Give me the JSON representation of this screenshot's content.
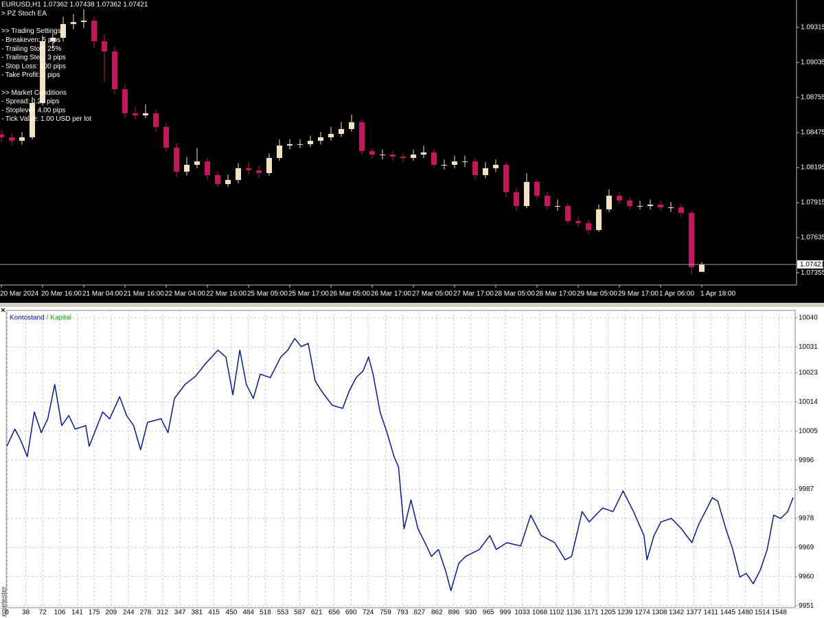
{
  "chart_data": [
    {
      "type": "candlestick",
      "title": "EURUSD,H1  1.07362 1.07438 1.07362 1.07421",
      "annotations": [
        [
          "> PZ Stoch EA"
        ],
        [
          ">> Trading Settings",
          "- Breakeven: 5 pips",
          "- Trailing Stop: 25%",
          "- Trailing Step: 3 pips",
          "- Stop Loss: 100 pips",
          "- Take Profit: 0 pips"
        ],
        [
          ">> Market Conditions",
          "- Spread: 0.20 pips",
          "- Stoplevel: 4.00 pips",
          "- Tick Value: 1.00 USD per lot"
        ]
      ],
      "categories": [
        "20 Mar 2024",
        null,
        null,
        null,
        "20 Mar 16:00",
        null,
        null,
        null,
        "21 Mar 04:00",
        null,
        null,
        null,
        "21 Mar 16:00",
        null,
        null,
        null,
        "22 Mar 04:00",
        null,
        null,
        null,
        "22 Mar 16:00",
        null,
        null,
        null,
        "25 Mar 05:00",
        null,
        null,
        null,
        "25 Mar 17:00",
        null,
        null,
        null,
        "26 Mar 05:00",
        null,
        null,
        null,
        "26 Mar 17:00",
        null,
        null,
        null,
        "27 Mar 05:00",
        null,
        null,
        null,
        "27 Mar 17:00",
        null,
        null,
        null,
        "28 Mar 05:00",
        null,
        null,
        null,
        "28 Mar 17:00",
        null,
        null,
        null,
        "29 Mar 05:00",
        null,
        null,
        null,
        "29 Mar 17:00",
        null,
        null,
        null,
        "1 Apr 06:00",
        null,
        null,
        null,
        "1 Apr 18:00"
      ],
      "open": [
        1.0846,
        1.08437,
        1.08409,
        1.08437,
        1.08711,
        1.09205,
        1.09232,
        1.09342,
        1.09358,
        1.09369,
        1.09205,
        1.09122,
        1.08821,
        1.08629,
        1.08612,
        1.08629,
        1.08519,
        1.08354,
        1.08162,
        1.08217,
        1.08244,
        1.08135,
        1.08063,
        1.08096,
        1.0819,
        1.08173,
        1.08151,
        1.08272,
        1.08371,
        1.08382,
        1.08382,
        1.08409,
        1.08437,
        1.08464,
        1.08503,
        1.08557,
        1.08327,
        1.08299,
        1.08299,
        1.08283,
        1.08272,
        1.08299,
        1.08316,
        1.08217,
        1.08217,
        1.08244,
        1.08244,
        1.08135,
        1.0819,
        1.08217,
        1.07998,
        1.07888,
        1.0808,
        1.0797,
        1.07888,
        1.07888,
        1.07767,
        1.07751,
        1.07696,
        1.07861,
        1.0797,
        1.07932,
        1.07888,
        1.07888,
        1.07899,
        1.07877,
        1.07877,
        1.07833,
        1.07362
      ],
      "high": [
        1.085,
        1.0847,
        1.0848,
        1.0876,
        1.0925,
        1.093,
        1.094,
        1.0942,
        1.0946,
        1.094,
        1.0926,
        1.0916,
        1.0886,
        1.0868,
        1.087,
        1.0866,
        1.0855,
        1.0839,
        1.0828,
        1.0835,
        1.0827,
        1.0816,
        1.0814,
        1.0823,
        1.0824,
        1.0821,
        1.0831,
        1.0842,
        1.0842,
        1.0842,
        1.0845,
        1.0848,
        1.0852,
        1.0856,
        1.0862,
        1.0858,
        1.0835,
        1.0834,
        1.0833,
        1.0831,
        1.0834,
        1.0837,
        1.0834,
        1.0826,
        1.0829,
        1.0829,
        1.0827,
        1.0824,
        1.0826,
        1.0824,
        1.0803,
        1.0815,
        1.081,
        1.08,
        1.0794,
        1.0791,
        1.078,
        1.0778,
        1.079,
        1.0802,
        1.08,
        1.0796,
        1.0793,
        1.0794,
        1.0793,
        1.0792,
        1.079,
        1.0785,
        1.07438
      ],
      "low": [
        1.084,
        1.0837,
        1.0838,
        1.0842,
        1.0869,
        1.0915,
        1.092,
        1.093,
        1.0931,
        1.0915,
        1.0888,
        1.0878,
        1.0859,
        1.0858,
        1.0859,
        1.0848,
        1.0832,
        1.0812,
        1.0813,
        1.0819,
        1.081,
        1.0804,
        1.0804,
        1.0807,
        1.0814,
        1.0811,
        1.0813,
        1.0825,
        1.0834,
        1.0835,
        1.0836,
        1.0838,
        1.0841,
        1.0844,
        1.0848,
        1.083,
        1.0827,
        1.0826,
        1.0825,
        1.0824,
        1.0825,
        1.0827,
        1.0819,
        1.0818,
        1.0819,
        1.082,
        1.081,
        1.0811,
        1.0816,
        1.0796,
        1.0785,
        1.0787,
        1.0794,
        1.0786,
        1.0785,
        1.0774,
        1.0772,
        1.0766,
        1.0768,
        1.0784,
        1.079,
        1.0786,
        1.0786,
        1.0786,
        1.0785,
        1.0784,
        1.078,
        1.0734,
        1.07362
      ],
      "close": [
        1.08437,
        1.08409,
        1.08437,
        1.08711,
        1.09205,
        1.09232,
        1.09342,
        1.09358,
        1.09369,
        1.09205,
        1.09122,
        1.08821,
        1.08629,
        1.08612,
        1.08629,
        1.08519,
        1.08354,
        1.08162,
        1.08217,
        1.08244,
        1.08135,
        1.08063,
        1.08096,
        1.0819,
        1.08173,
        1.08151,
        1.08272,
        1.08371,
        1.08382,
        1.08382,
        1.08409,
        1.08437,
        1.08464,
        1.08503,
        1.08557,
        1.08327,
        1.08299,
        1.08299,
        1.08283,
        1.08272,
        1.08299,
        1.08316,
        1.08217,
        1.08217,
        1.08244,
        1.08244,
        1.08135,
        1.0819,
        1.08217,
        1.07998,
        1.07888,
        1.0808,
        1.0797,
        1.07888,
        1.07888,
        1.07767,
        1.07751,
        1.07696,
        1.07861,
        1.0797,
        1.07932,
        1.07888,
        1.07888,
        1.07899,
        1.07877,
        1.07877,
        1.07833,
        1.074,
        1.07421
      ],
      "up_color": "#f3e3c3",
      "down_color": "#c2185b",
      "current_price": 1.07421,
      "ylim": [
        1.07257,
        1.09534
      ],
      "yticks": [
        1.09315,
        1.09035,
        1.08755,
        1.08475,
        1.08195,
        1.07915,
        1.07635,
        1.07355
      ]
    },
    {
      "type": "line",
      "side_label": "egietester",
      "legend_separator": "/",
      "x": [
        0,
        16,
        27,
        41,
        55,
        69,
        82,
        96,
        110,
        124,
        137,
        158,
        165,
        192,
        206,
        226,
        240,
        254,
        268,
        282,
        309,
        323,
        336,
        357,
        378,
        398,
        423,
        439,
        453,
        467,
        480,
        494,
        508,
        528,
        549,
        563,
        577,
        590,
        604,
        618,
        631,
        652,
        673,
        686,
        700,
        714,
        725,
        734,
        748,
        762,
        776,
        785,
        796,
        810,
        824,
        838,
        851,
        865,
        879,
        890,
        906,
        920,
        947,
        968,
        981,
        1002,
        1030,
        1050,
        1071,
        1098,
        1119,
        1132,
        1153,
        1167,
        1194,
        1215,
        1235,
        1256,
        1277,
        1283,
        1297,
        1311,
        1332,
        1352,
        1373,
        1386,
        1414,
        1425,
        1441,
        1455,
        1469,
        1482,
        1496,
        1510,
        1524,
        1537,
        1551,
        1565,
        1576
      ],
      "series": [
        {
          "name": "Kontostand",
          "color": "#0a14a0",
          "values": [
            10000.3,
            10005.6,
            10002.4,
            9997.1,
            10010.9,
            10004.5,
            10008.8,
            10019.4,
            10006.7,
            10009.8,
            10005.6,
            10006.7,
            10000.3,
            10010.9,
            10008.8,
            10015.6,
            10009.8,
            10006.7,
            9999.2,
            10007.7,
            10008.8,
            10004.5,
            10015.1,
            10019.4,
            10021.9,
            10025.8,
            10030.0,
            10027.9,
            10016.2,
            10030.0,
            10019.4,
            10015.1,
            10022.6,
            10021.5,
            10027.9,
            10030.0,
            10033.6,
            10031.1,
            10032.1,
            10020.5,
            10017.3,
            10013.0,
            10012.0,
            10017.3,
            10021.5,
            10023.6,
            10027.9,
            10022.6,
            10010.9,
            10004.5,
            9997.1,
            9993.9,
            9974.8,
            9983.7,
            9974.8,
            9970.5,
            9966.3,
            9968.4,
            9962.0,
            9955.7,
            9964.2,
            9966.3,
            9968.4,
            9972.7,
            9968.4,
            9970.5,
            9969.5,
            9979.0,
            9972.7,
            9970.5,
            9965.2,
            9966.3,
            9980.1,
            9976.9,
            9981.2,
            9980.1,
            9986.5,
            9980.1,
            9972.7,
            9965.2,
            9972.7,
            9976.9,
            9978.0,
            9974.8,
            9970.5,
            9975.9,
            9984.4,
            9983.3,
            9974.8,
            9968.4,
            9959.9,
            9961.0,
            9957.8,
            9962.0,
            9968.4,
            9979.0,
            9978.0,
            9980.1,
            9984.4
          ]
        },
        {
          "name": "Kapital",
          "color": "#1fa01f",
          "values": [
            10000.3,
            10005.6,
            10002.4,
            9997.1,
            10010.9,
            10004.5,
            10008.8,
            10019.4,
            10006.7,
            10009.8,
            10005.6,
            10006.7,
            10000.3,
            10010.9,
            10008.8,
            10015.6,
            10009.8,
            10006.7,
            9999.2,
            10007.7,
            10008.8,
            10004.5,
            10015.1,
            10019.4,
            10021.9,
            10025.8,
            10030.0,
            10027.9,
            10016.2,
            10030.0,
            10019.4,
            10015.1,
            10022.6,
            10021.5,
            10027.9,
            10030.0,
            10033.6,
            10031.1,
            10032.1,
            10020.5,
            10017.3,
            10013.0,
            10012.0,
            10017.3,
            10021.5,
            10023.6,
            10027.9,
            10022.6,
            10010.9,
            10004.5,
            9997.1,
            9993.9,
            9974.8,
            9983.7,
            9974.8,
            9970.5,
            9966.3,
            9968.4,
            9962.0,
            9955.7,
            9964.2,
            9966.3,
            9968.4,
            9972.7,
            9968.4,
            9970.5,
            9969.5,
            9979.0,
            9972.7,
            9970.5,
            9965.2,
            9966.3,
            9980.1,
            9976.9,
            9981.2,
            9980.1,
            9986.5,
            9980.1,
            9972.7,
            9965.2,
            9972.7,
            9976.9,
            9978.0,
            9974.8,
            9970.5,
            9975.9,
            9984.4,
            9983.3,
            9974.8,
            9968.4,
            9959.9,
            9961.0,
            9957.8,
            9962.0,
            9968.4,
            9979.0,
            9978.0,
            9980.1,
            9984.4
          ]
        }
      ],
      "xlim": [
        0,
        1580
      ],
      "xticks": [
        0,
        38,
        72,
        106,
        141,
        175,
        209,
        244,
        278,
        312,
        347,
        381,
        415,
        450,
        484,
        518,
        553,
        587,
        621,
        656,
        690,
        724,
        759,
        793,
        827,
        862,
        896,
        930,
        965,
        999,
        1033,
        1068,
        1102,
        1136,
        1171,
        1205,
        1239,
        1274,
        1308,
        1342,
        1377,
        1411,
        1445,
        1480,
        1514,
        1548
      ],
      "ylim": [
        9950.4,
        10042.3
      ],
      "yticks": [
        10040,
        10031,
        10023,
        10014,
        10005,
        9996,
        9987,
        9978,
        9969,
        9960,
        9951
      ],
      "grid": true
    }
  ]
}
